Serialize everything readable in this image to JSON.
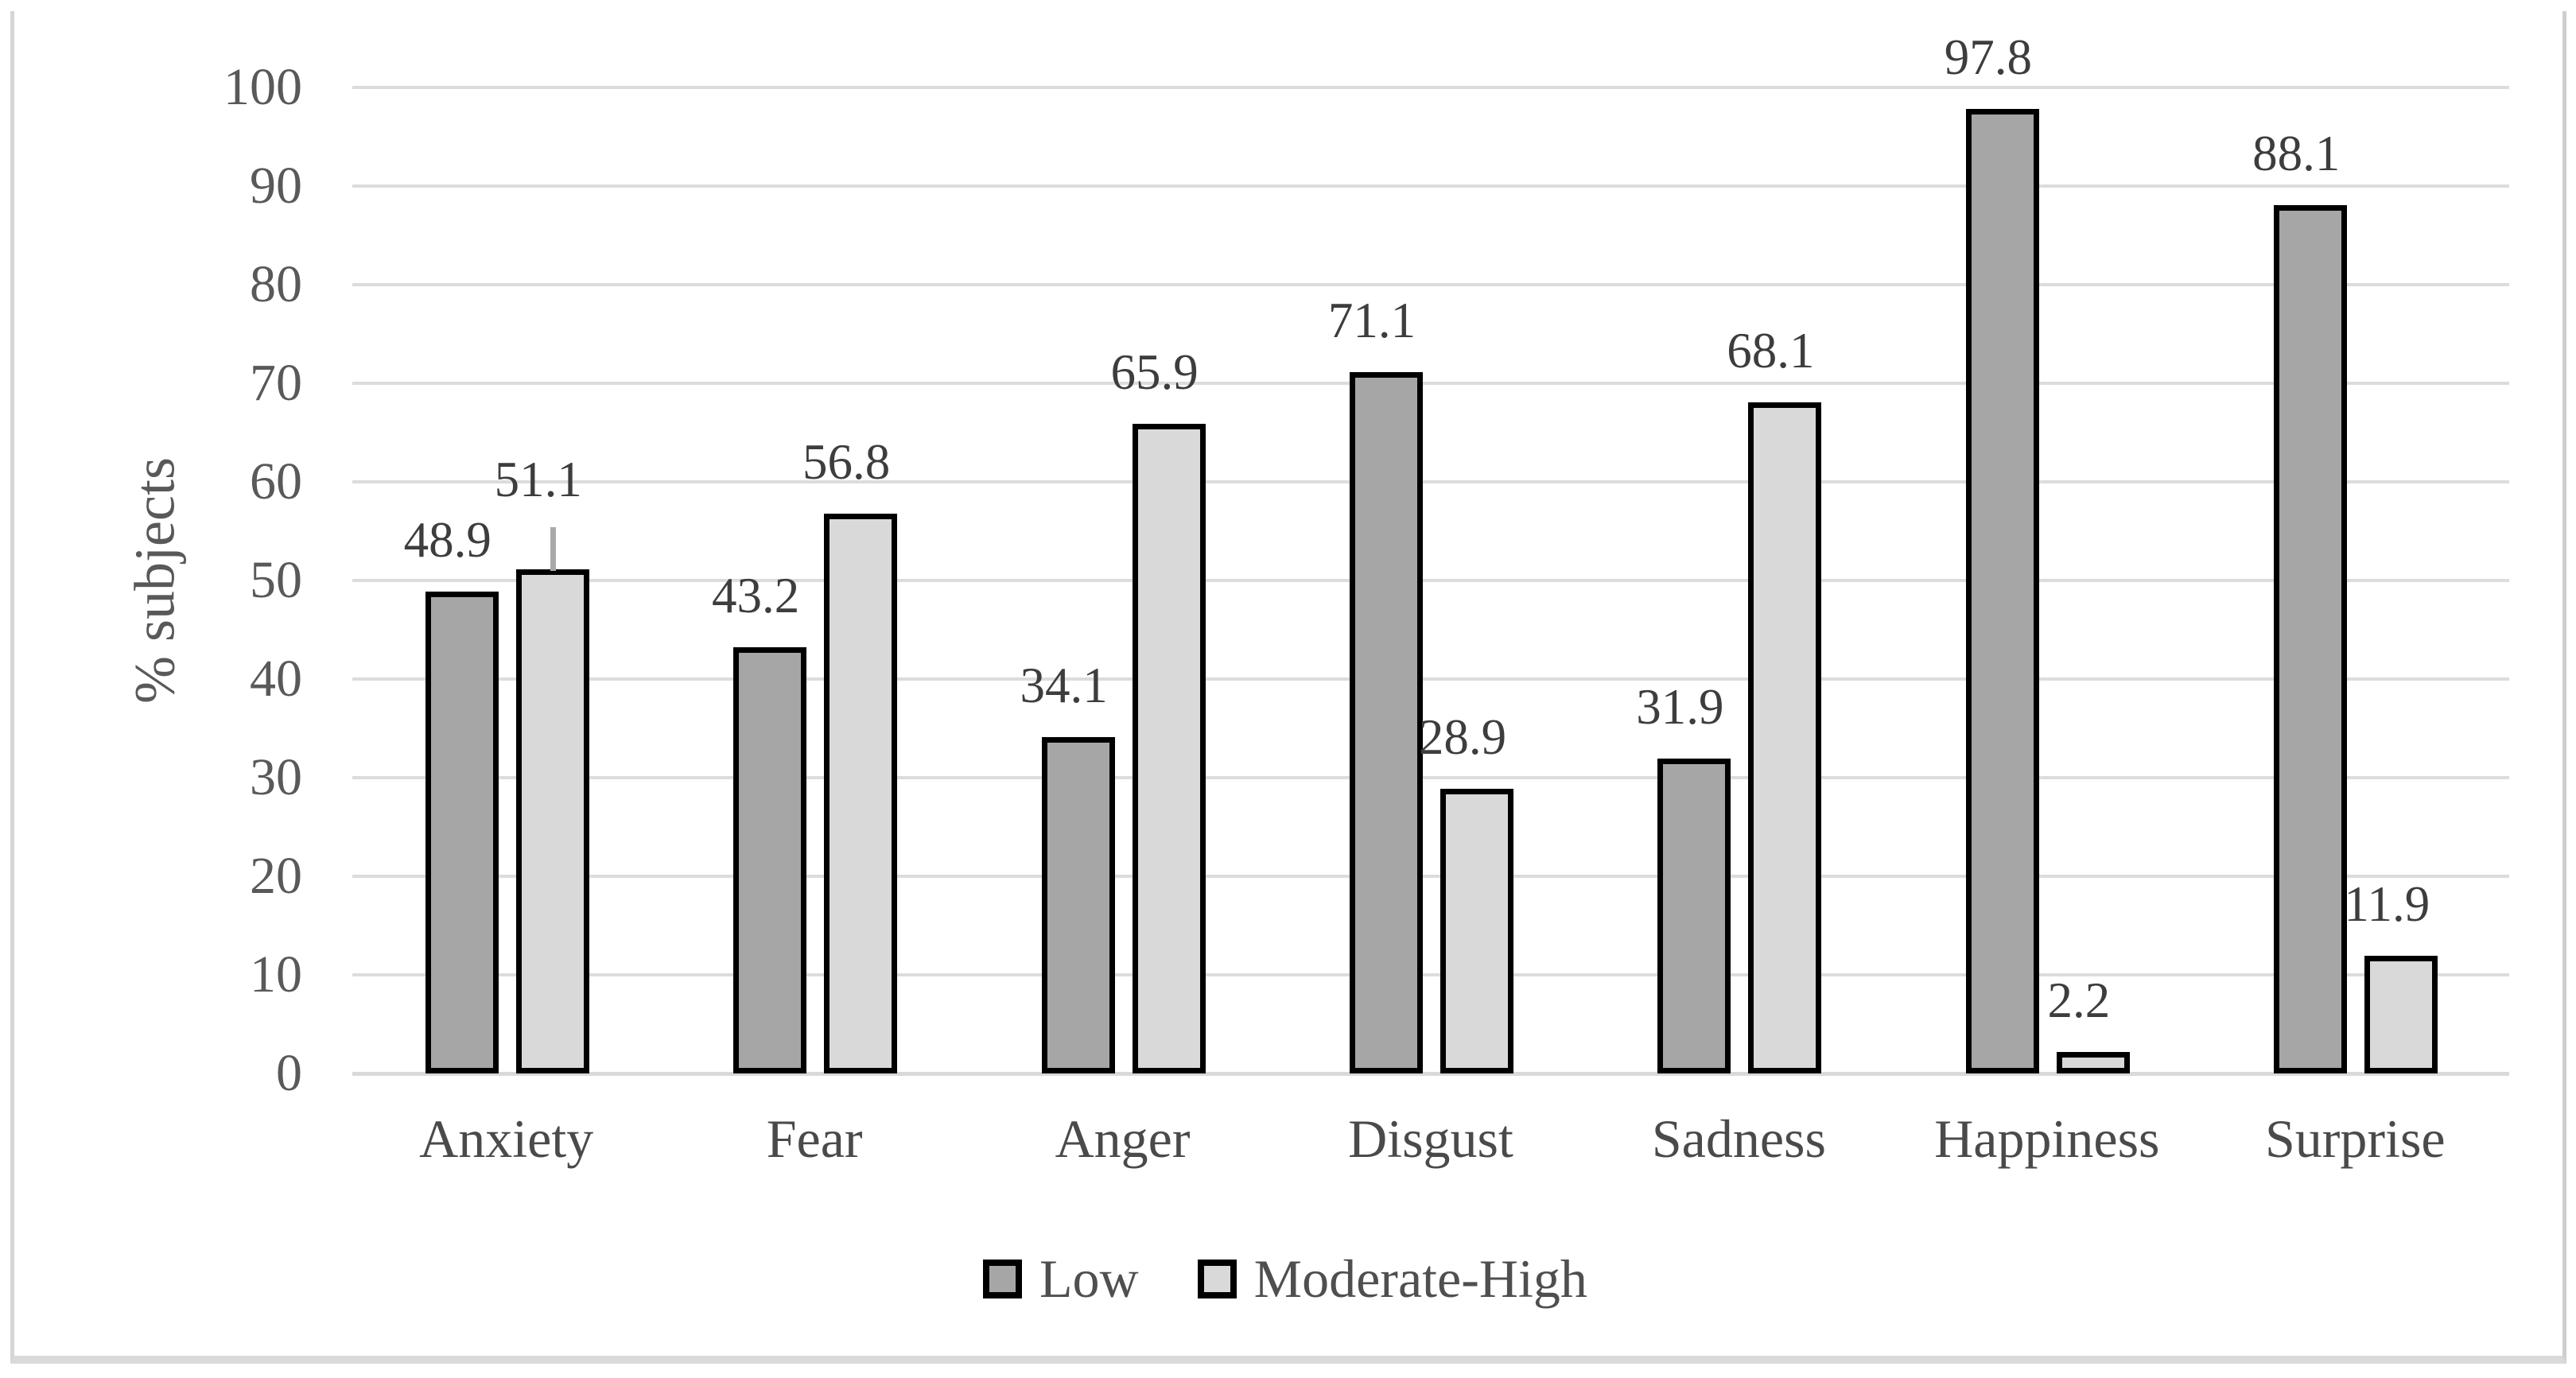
{
  "figure": {
    "background": "#ffffff",
    "frame_border_color": "#d6d6d6"
  },
  "chart_data": {
    "type": "bar",
    "title": "",
    "xlabel": "",
    "ylabel": "% subjects",
    "categories": [
      "Anxiety",
      "Fear",
      "Anger",
      "Disgust",
      "Sadness",
      "Happiness",
      "Surprise"
    ],
    "series": [
      {
        "name": "Low",
        "color": "#a6a6a6",
        "values": [
          48.9,
          43.2,
          34.1,
          71.1,
          31.9,
          97.8,
          88.1
        ]
      },
      {
        "name": "Moderate-High",
        "color": "#d9d9d9",
        "values": [
          51.1,
          56.8,
          65.9,
          28.9,
          68.1,
          2.2,
          11.9
        ]
      }
    ],
    "data_labels": [
      [
        "48.9",
        "43.2",
        "34.1",
        "71.1",
        "31.9",
        "97.8",
        "88.1"
      ],
      [
        "51.1",
        "56.8",
        "65.9",
        "28.9",
        "68.1",
        "2.2",
        "11.9"
      ]
    ],
    "ylim": [
      0,
      100
    ],
    "yticks": [
      0,
      10,
      20,
      30,
      40,
      50,
      60,
      70,
      80,
      90,
      100
    ],
    "grid": "horizontal",
    "gridline_color": "#dcdcdc",
    "bar_border_color": "#000000",
    "legend_position": "bottom",
    "legend_entries": [
      "Low",
      "Moderate-High"
    ],
    "error_tick": {
      "category": "Anxiety",
      "series": "Moderate-High",
      "color": "#a9a9a9"
    }
  }
}
